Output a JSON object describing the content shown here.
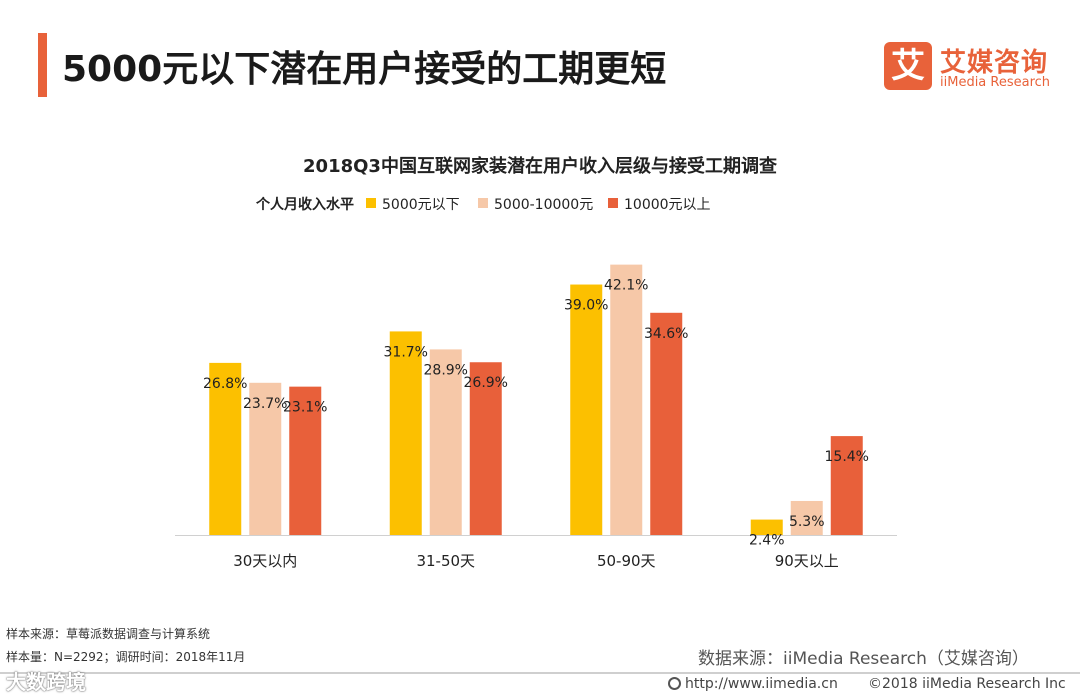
{
  "header": {
    "title": "5000元以下潜在用户接受的工期更短",
    "accent_color": "#e8623a"
  },
  "logo": {
    "mark": "艾",
    "name_cn": "艾媒咨询",
    "name_en": "iiMedia Research",
    "color": "#e8623a"
  },
  "chart_data": {
    "type": "bar",
    "title": "2018Q3中国互联网家装潜在用户收入层级与接受工期调查",
    "legend_title": "个人月收入水平",
    "categories": [
      "30天以内",
      "31-50天",
      "50-90天",
      "90天以上"
    ],
    "series": [
      {
        "name": "5000元以下",
        "color": "#fcc000",
        "values": [
          26.8,
          31.7,
          39.0,
          2.4
        ],
        "labels": [
          "26.8%",
          "31.7%",
          "39.0%",
          "2.4%"
        ]
      },
      {
        "name": "5000-10000元",
        "color": "#f6c8a8",
        "values": [
          23.7,
          28.9,
          42.1,
          5.3
        ],
        "labels": [
          "23.7%",
          "28.9%",
          "42.1%",
          "5.3%"
        ]
      },
      {
        "name": "10000元以上",
        "color": "#e8603a",
        "values": [
          23.1,
          26.9,
          34.6,
          15.4
        ],
        "labels": [
          "23.1%",
          "26.9%",
          "34.6%",
          "15.4%"
        ]
      }
    ],
    "ylim": [
      0,
      45
    ],
    "grid": false,
    "legend_position": "top-left"
  },
  "footnotes": {
    "sample_source": "样本来源：草莓派数据调查与计算系统",
    "sample_size": "样本量：N=2292；调研时间：2018年11月"
  },
  "source": "数据来源：iiMedia Research（艾媒咨询）",
  "watermark": "大数跨境",
  "url": "http://www.iimedia.cn",
  "copyright": "©2018  iiMedia Research  Inc"
}
